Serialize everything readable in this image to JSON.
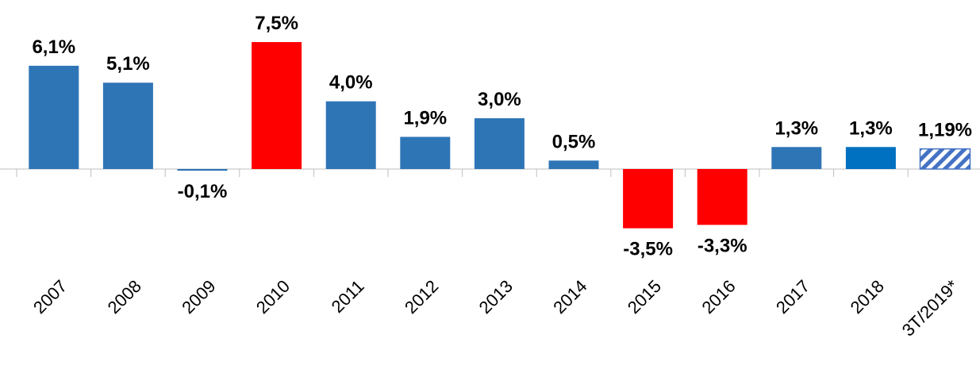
{
  "chart_data": {
    "type": "bar",
    "categories": [
      "2007",
      "2008",
      "2009",
      "2010",
      "2011",
      "2012",
      "2013",
      "2014",
      "2015",
      "2016",
      "2017",
      "2018",
      "3T/2019*"
    ],
    "values": [
      6.1,
      5.1,
      -0.1,
      7.5,
      4.0,
      1.9,
      3.0,
      0.5,
      -3.5,
      -3.3,
      1.3,
      1.3,
      1.19
    ],
    "value_labels": [
      "6,1%",
      "5,1%",
      "-0,1%",
      "7,5%",
      "4,0%",
      "1,9%",
      "3,0%",
      "0,5%",
      "-3,5%",
      "-3,3%",
      "1,3%",
      "1,3%",
      "1,19%"
    ],
    "colors": [
      "#2e75b6",
      "#2e75b6",
      "#2e75b6",
      "#ff0000",
      "#2e75b6",
      "#2e75b6",
      "#2e75b6",
      "#2e75b6",
      "#ff0000",
      "#ff0000",
      "#2e75b6",
      "#0070c0",
      "#4472c4"
    ],
    "hatch": [
      false,
      false,
      false,
      false,
      false,
      false,
      false,
      false,
      false,
      false,
      false,
      false,
      true
    ]
  }
}
